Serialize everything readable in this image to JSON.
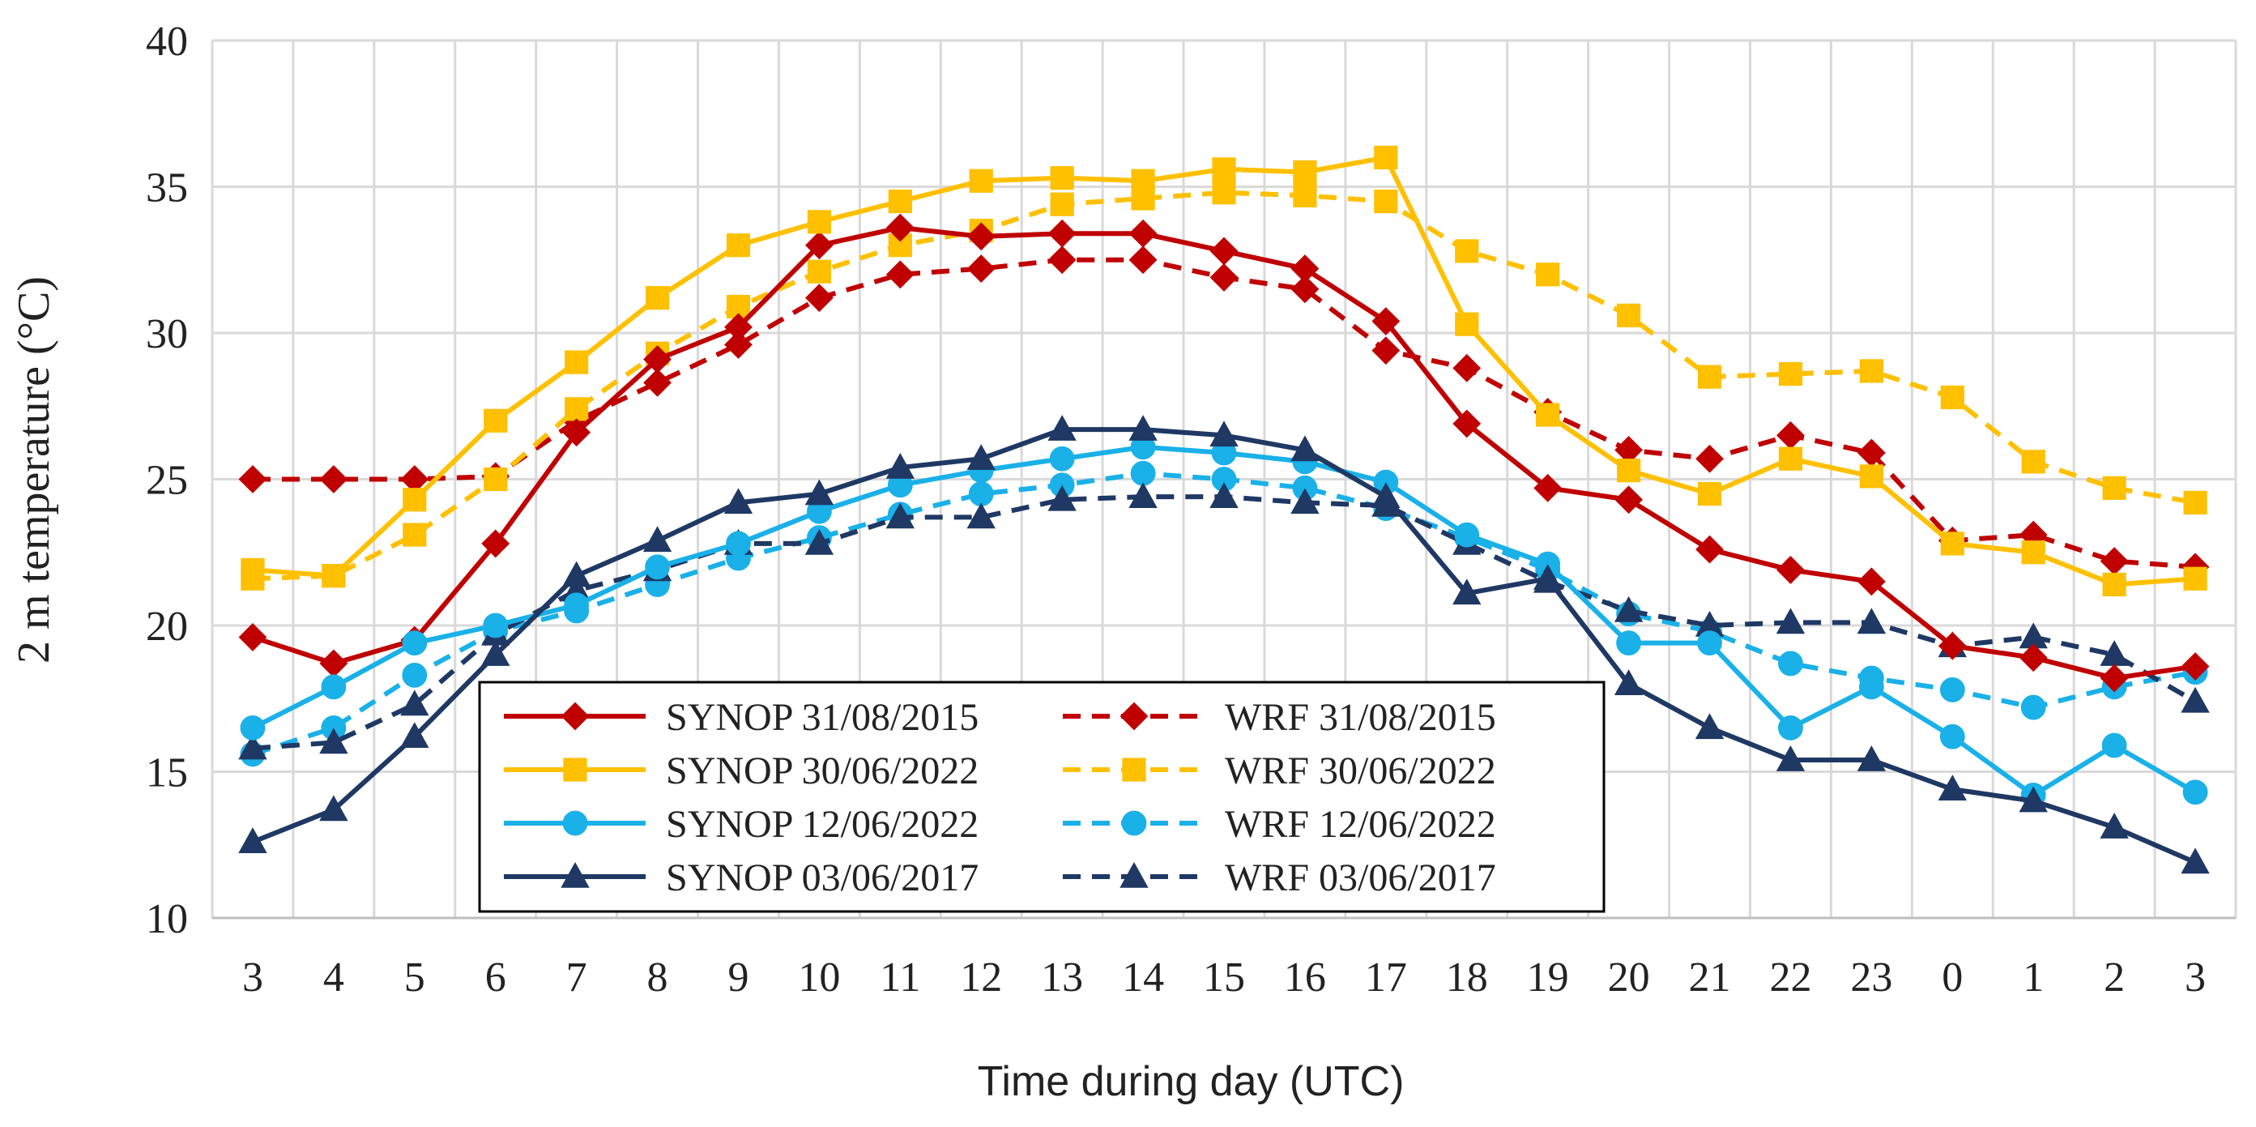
{
  "chart_data": {
    "type": "line",
    "title": "",
    "xlabel": "Time during day (UTC)",
    "ylabel": "2 m temperature (°C)",
    "ylim": [
      10,
      40
    ],
    "yticks": [
      10,
      15,
      20,
      25,
      30,
      35,
      40
    ],
    "categories": [
      "3",
      "4",
      "5",
      "6",
      "7",
      "8",
      "9",
      "10",
      "11",
      "12",
      "13",
      "14",
      "15",
      "16",
      "17",
      "18",
      "19",
      "20",
      "21",
      "22",
      "23",
      "0",
      "1",
      "2",
      "3"
    ],
    "grid": true,
    "legend_position": "bottom-center",
    "series": [
      {
        "name": "SYNOP 31/08/2015",
        "color": "#c00000",
        "dash": "solid",
        "marker": "diamond",
        "values": [
          19.6,
          18.7,
          19.5,
          22.8,
          26.6,
          29.1,
          30.2,
          33.0,
          33.6,
          33.3,
          33.4,
          33.4,
          32.8,
          32.2,
          30.4,
          26.9,
          24.7,
          24.3,
          22.6,
          21.9,
          21.5,
          19.3,
          18.9,
          18.2,
          18.6
        ]
      },
      {
        "name": "SYNOP 30/06/2022",
        "color": "#ffc000",
        "dash": "solid",
        "marker": "square",
        "values": [
          21.9,
          21.7,
          24.3,
          27.0,
          29.0,
          31.2,
          33.0,
          33.8,
          34.5,
          35.2,
          35.3,
          35.2,
          35.6,
          35.5,
          36.0,
          30.3,
          27.2,
          25.3,
          24.5,
          25.7,
          25.1,
          22.8,
          22.5,
          21.4,
          21.6
        ]
      },
      {
        "name": "SYNOP 12/06/2022",
        "color": "#1ab0e8",
        "dash": "solid",
        "marker": "circle",
        "values": [
          16.5,
          17.9,
          19.4,
          20.0,
          20.7,
          22.0,
          22.8,
          23.9,
          24.8,
          25.3,
          25.7,
          26.1,
          25.9,
          25.6,
          24.9,
          23.1,
          22.1,
          19.4,
          19.4,
          16.5,
          17.9,
          16.2,
          14.2,
          15.9,
          14.3
        ]
      },
      {
        "name": "SYNOP 03/06/2017",
        "color": "#1f3864",
        "dash": "solid",
        "marker": "triangle",
        "values": [
          12.6,
          13.7,
          16.2,
          19.0,
          21.7,
          22.9,
          24.2,
          24.5,
          25.4,
          25.7,
          26.7,
          26.7,
          26.5,
          26.0,
          24.4,
          21.1,
          21.6,
          18.0,
          16.5,
          15.4,
          15.4,
          14.4,
          14.0,
          13.1,
          11.9
        ]
      },
      {
        "name": "WRF 31/08/2015",
        "color": "#c00000",
        "dash": "dashed",
        "marker": "diamond",
        "values": [
          25.0,
          25.0,
          25.0,
          25.1,
          27.0,
          28.3,
          29.6,
          31.2,
          32.0,
          32.2,
          32.5,
          32.5,
          31.9,
          31.5,
          29.4,
          28.8,
          27.3,
          26.0,
          25.7,
          26.5,
          25.9,
          22.9,
          23.1,
          22.2,
          22.0
        ]
      },
      {
        "name": "WRF 30/06/2022",
        "color": "#ffc000",
        "dash": "dashed",
        "marker": "square",
        "values": [
          21.6,
          21.7,
          23.1,
          25.0,
          27.4,
          29.3,
          30.9,
          32.1,
          33.0,
          33.5,
          34.4,
          34.6,
          34.8,
          34.7,
          34.5,
          32.8,
          32.0,
          30.6,
          28.5,
          28.6,
          28.7,
          27.8,
          25.6,
          24.7,
          24.2
        ]
      },
      {
        "name": "WRF 12/06/2022",
        "color": "#1ab0e8",
        "dash": "dashed",
        "marker": "circle",
        "values": [
          15.6,
          16.5,
          18.3,
          19.8,
          20.5,
          21.4,
          22.3,
          23.0,
          23.8,
          24.5,
          24.8,
          25.2,
          25.0,
          24.7,
          24.0,
          23.0,
          21.9,
          20.4,
          19.8,
          18.7,
          18.2,
          17.8,
          17.2,
          17.9,
          18.4
        ]
      },
      {
        "name": "WRF 03/06/2017",
        "color": "#1f3864",
        "dash": "dashed",
        "marker": "triangle",
        "values": [
          15.8,
          16.0,
          17.3,
          19.7,
          21.2,
          21.9,
          22.8,
          22.8,
          23.7,
          23.7,
          24.3,
          24.4,
          24.4,
          24.2,
          24.1,
          22.8,
          21.5,
          20.5,
          20.0,
          20.1,
          20.1,
          19.3,
          19.6,
          19.0,
          17.4
        ]
      }
    ]
  }
}
